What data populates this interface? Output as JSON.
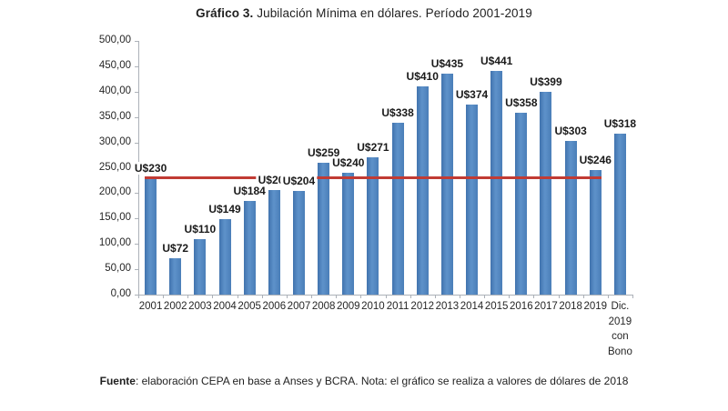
{
  "title": {
    "prefix": "Gráfico 3.",
    "suffix": " Jubilación Mínima en dólares. Período 2001-2019"
  },
  "footer": {
    "prefix": "Fuente",
    "suffix": ": elaboración CEPA en base a Anses y BCRA. Nota: el gráfico se realiza a valores de dólares de 2018"
  },
  "chart_data": {
    "type": "bar",
    "title": "Gráfico 3. Jubilación Mínima en dólares. Período 2001-2019",
    "categories": [
      "2001",
      "2002",
      "2003",
      "2004",
      "2005",
      "2006",
      "2007",
      "2008",
      "2009",
      "2010",
      "2011",
      "2012",
      "2013",
      "2014",
      "2015",
      "2016",
      "2017",
      "2018",
      "2019",
      "Dic. 2019 con Bono"
    ],
    "values": [
      230,
      72,
      110,
      149,
      184,
      206,
      204,
      259,
      240,
      271,
      338,
      410,
      435,
      374,
      441,
      358,
      399,
      303,
      246,
      318
    ],
    "bar_labels": [
      "U$230",
      "U$72",
      "U$110",
      "U$149",
      "U$184",
      "U$206",
      "U$204",
      "U$259",
      "U$240",
      "U$271",
      "U$338",
      "U$410",
      "U$435",
      "U$374",
      "U$441",
      "U$358",
      "U$399",
      "U$303",
      "U$246",
      "U$318"
    ],
    "y_ticks": [
      "500,00",
      "450,00",
      "400,00",
      "350,00",
      "300,00",
      "250,00",
      "200,00",
      "150,00",
      "100,00",
      "50,00",
      "0,00"
    ],
    "ylim": [
      0,
      500
    ],
    "y_tick_step": 50,
    "grid": false,
    "legend": false,
    "bar_color": "#4d81bc",
    "reference_line": {
      "value": 230,
      "color": "#c13b34",
      "covers_categories_from": "2001",
      "covers_categories_to": "2019"
    }
  }
}
